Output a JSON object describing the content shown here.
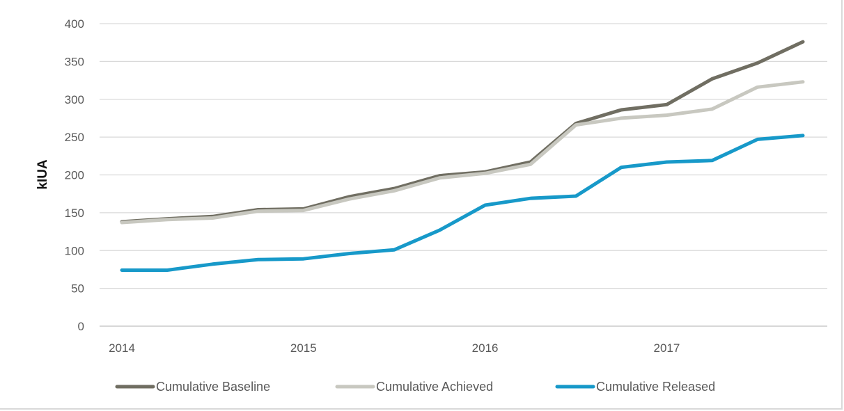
{
  "chart_data": {
    "type": "line",
    "title": "",
    "xlabel": "",
    "ylabel": "kIUA",
    "ylim": [
      0,
      400
    ],
    "yticks": [
      "0",
      "50",
      "100",
      "150",
      "200",
      "250",
      "300",
      "350",
      "400"
    ],
    "xticks": [
      "2014",
      "2015",
      "2016",
      "2017"
    ],
    "grid": true,
    "legend_position": "bottom",
    "x": [
      2014.0,
      2014.25,
      2014.5,
      2014.75,
      2015.0,
      2015.25,
      2015.5,
      2015.75,
      2016.0,
      2016.25,
      2016.5,
      2016.75,
      2017.0,
      2017.25,
      2017.5,
      2017.75
    ],
    "series": [
      {
        "name": "Cumulative Baseline",
        "color": "#706e62",
        "values": [
          138,
          142,
          145,
          154,
          155,
          171,
          182,
          199,
          204,
          217,
          268,
          286,
          293,
          327,
          348,
          376
        ]
      },
      {
        "name": "Cumulative Achieved",
        "color": "#c8c8c0",
        "values": [
          137,
          141,
          143,
          152,
          153,
          168,
          179,
          196,
          202,
          214,
          266,
          275,
          279,
          287,
          316,
          323
        ]
      },
      {
        "name": "Cumulative Released",
        "color": "#1799c9",
        "values": [
          74,
          74,
          82,
          88,
          89,
          96,
          101,
          127,
          160,
          169,
          172,
          210,
          217,
          219,
          247,
          252
        ]
      }
    ]
  }
}
